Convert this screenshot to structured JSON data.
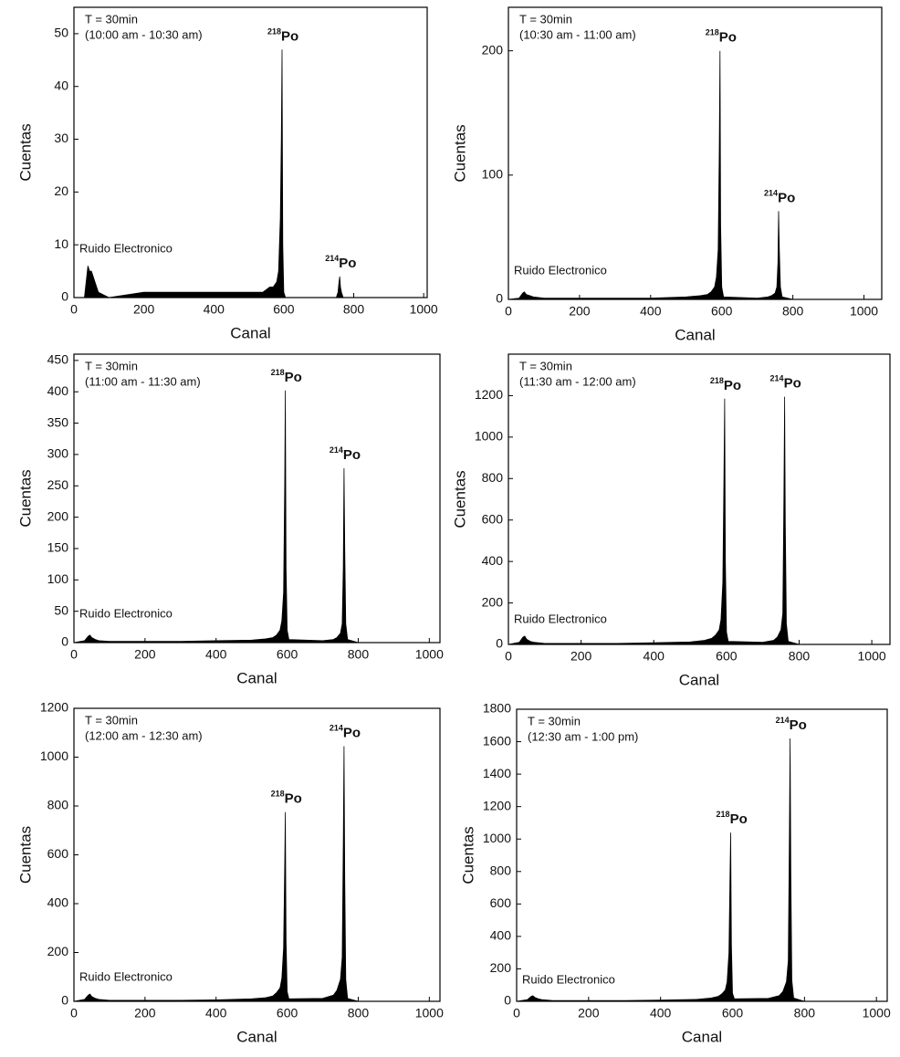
{
  "chart_data": [
    {
      "type": "area",
      "xlabel": "Canal",
      "ylabel": "Cuentas",
      "annotations": [
        "T = 30min",
        "(10:00 am - 10:30 am)"
      ],
      "noise_label": "Ruido Electronico",
      "peaks": [
        {
          "mass": "218",
          "symbol": "Po"
        },
        {
          "mass": "214",
          "symbol": "Po"
        }
      ],
      "color": "#000000",
      "x": [
        0,
        30,
        40,
        45,
        50,
        60,
        70,
        100,
        200,
        300,
        400,
        500,
        540,
        560,
        570,
        580,
        585,
        590,
        593,
        595,
        597,
        600,
        605,
        700,
        730,
        740,
        750,
        755,
        758,
        760,
        762,
        765,
        770,
        800,
        1000
      ],
      "values": [
        0,
        0,
        6,
        5,
        5,
        3,
        1,
        0,
        1,
        1,
        1,
        1,
        1,
        2,
        2,
        3,
        5,
        15,
        30,
        47,
        10,
        1,
        0,
        0,
        0,
        0,
        0,
        1,
        3,
        4,
        2,
        1,
        0,
        0,
        0
      ],
      "xlim": [
        0,
        1010
      ],
      "ylim": [
        0,
        55
      ],
      "xticks": [
        0,
        200,
        400,
        600,
        800,
        1000
      ],
      "yticks": [
        0,
        10,
        20,
        30,
        40,
        50
      ]
    },
    {
      "type": "area",
      "xlabel": "Canal",
      "ylabel": "Cuentas",
      "annotations": [
        "T = 30min",
        "(10:30 am - 11:00 am)"
      ],
      "noise_label": "Ruido Electronico",
      "peaks": [
        {
          "mass": "218",
          "symbol": "Po"
        },
        {
          "mass": "214",
          "symbol": "Po"
        }
      ],
      "color": "#000000",
      "x": [
        0,
        30,
        40,
        45,
        50,
        60,
        70,
        100,
        200,
        300,
        400,
        500,
        540,
        560,
        570,
        580,
        585,
        590,
        593,
        595,
        597,
        600,
        605,
        700,
        730,
        740,
        750,
        755,
        758,
        760,
        762,
        765,
        770,
        800,
        1000
      ],
      "values": [
        0,
        1,
        5,
        6,
        4,
        3,
        2,
        1,
        1,
        1,
        1,
        2,
        3,
        4,
        6,
        10,
        18,
        40,
        120,
        200,
        60,
        10,
        2,
        1,
        2,
        3,
        5,
        10,
        30,
        71,
        40,
        10,
        2,
        0,
        0
      ],
      "xlim": [
        0,
        1050
      ],
      "ylim": [
        0,
        235
      ],
      "xticks": [
        0,
        200,
        400,
        600,
        800,
        1000
      ],
      "yticks": [
        0,
        100,
        200
      ]
    },
    {
      "type": "area",
      "xlabel": "Canal",
      "ylabel": "Cuentas",
      "annotations": [
        "T = 30min",
        "(11:00 am - 11:30 am)"
      ],
      "noise_label": "Ruido Electronico",
      "peaks": [
        {
          "mass": "218",
          "symbol": "Po"
        },
        {
          "mass": "214",
          "symbol": "Po"
        }
      ],
      "color": "#000000",
      "x": [
        0,
        30,
        40,
        45,
        50,
        60,
        70,
        100,
        200,
        300,
        400,
        500,
        540,
        560,
        570,
        580,
        585,
        590,
        593,
        595,
        597,
        600,
        605,
        700,
        730,
        740,
        750,
        755,
        758,
        760,
        762,
        765,
        770,
        800,
        1000
      ],
      "values": [
        0,
        3,
        10,
        12,
        8,
        5,
        3,
        2,
        2,
        2,
        3,
        4,
        6,
        8,
        12,
        20,
        35,
        80,
        250,
        402,
        120,
        20,
        5,
        3,
        5,
        8,
        15,
        30,
        120,
        278,
        150,
        30,
        5,
        0,
        0
      ],
      "xlim": [
        0,
        1030
      ],
      "ylim": [
        0,
        460
      ],
      "xticks": [
        0,
        200,
        400,
        600,
        800,
        1000
      ],
      "yticks": [
        0,
        50,
        100,
        150,
        200,
        250,
        300,
        350,
        400,
        450
      ]
    },
    {
      "type": "area",
      "xlabel": "Canal",
      "ylabel": "Cuentas",
      "annotations": [
        "T = 30min",
        "(11:30 am - 12:00 am)"
      ],
      "noise_label": "Ruido Electronico",
      "peaks": [
        {
          "mass": "218",
          "symbol": "Po"
        },
        {
          "mass": "214",
          "symbol": "Po"
        }
      ],
      "color": "#000000",
      "x": [
        0,
        30,
        40,
        45,
        50,
        60,
        70,
        100,
        200,
        300,
        400,
        500,
        540,
        560,
        570,
        580,
        585,
        590,
        593,
        595,
        597,
        600,
        605,
        700,
        730,
        740,
        750,
        755,
        758,
        760,
        762,
        765,
        770,
        800,
        1000
      ],
      "values": [
        0,
        10,
        35,
        40,
        25,
        15,
        10,
        5,
        5,
        5,
        8,
        12,
        20,
        30,
        45,
        70,
        120,
        300,
        800,
        1185,
        400,
        60,
        15,
        10,
        20,
        35,
        70,
        150,
        700,
        1195,
        600,
        100,
        15,
        0,
        0
      ],
      "xlim": [
        0,
        1050
      ],
      "ylim": [
        0,
        1400
      ],
      "xticks": [
        0,
        200,
        400,
        600,
        800,
        1000
      ],
      "yticks": [
        0,
        200,
        400,
        600,
        800,
        1000,
        1200
      ]
    },
    {
      "type": "area",
      "xlabel": "Canal",
      "ylabel": "Cuentas",
      "annotations": [
        "T = 30min",
        "(12:00 am - 12:30 am)"
      ],
      "noise_label": "Ruido Electronico",
      "peaks": [
        {
          "mass": "218",
          "symbol": "Po"
        },
        {
          "mass": "214",
          "symbol": "Po"
        }
      ],
      "color": "#000000",
      "x": [
        0,
        30,
        40,
        45,
        50,
        60,
        70,
        100,
        200,
        300,
        400,
        500,
        540,
        560,
        570,
        580,
        585,
        590,
        593,
        595,
        597,
        600,
        605,
        700,
        730,
        740,
        750,
        755,
        758,
        760,
        762,
        765,
        770,
        800,
        1000
      ],
      "values": [
        0,
        8,
        25,
        30,
        20,
        12,
        8,
        4,
        4,
        4,
        6,
        10,
        15,
        22,
        35,
        55,
        95,
        220,
        550,
        775,
        250,
        40,
        10,
        12,
        25,
        45,
        90,
        180,
        650,
        1045,
        500,
        90,
        12,
        0,
        0
      ],
      "xlim": [
        0,
        1030
      ],
      "ylim": [
        0,
        1200
      ],
      "xticks": [
        0,
        200,
        400,
        600,
        800,
        1000
      ],
      "yticks": [
        0,
        200,
        400,
        600,
        800,
        1000,
        1200
      ]
    },
    {
      "type": "area",
      "xlabel": "Canal",
      "ylabel": "Cuentas",
      "annotations": [
        "T = 30min",
        "(12:30 am - 1:00 pm)"
      ],
      "noise_label": "Ruido Electronico",
      "peaks": [
        {
          "mass": "218",
          "symbol": "Po"
        },
        {
          "mass": "214",
          "symbol": "Po"
        }
      ],
      "color": "#000000",
      "x": [
        0,
        30,
        40,
        45,
        50,
        60,
        70,
        100,
        200,
        300,
        400,
        500,
        540,
        560,
        570,
        580,
        585,
        590,
        593,
        595,
        597,
        600,
        605,
        700,
        730,
        740,
        750,
        755,
        758,
        760,
        762,
        765,
        770,
        800,
        1000
      ],
      "values": [
        0,
        10,
        30,
        35,
        25,
        15,
        10,
        5,
        5,
        5,
        8,
        12,
        20,
        30,
        45,
        70,
        120,
        300,
        750,
        1040,
        350,
        50,
        15,
        18,
        35,
        60,
        120,
        250,
        1000,
        1620,
        800,
        130,
        20,
        0,
        0
      ],
      "xlim": [
        0,
        1030
      ],
      "ylim": [
        0,
        1800
      ],
      "xticks": [
        0,
        200,
        400,
        600,
        800,
        1000
      ],
      "yticks": [
        0,
        200,
        400,
        600,
        800,
        1000,
        1200,
        1400,
        1600,
        1800
      ]
    }
  ]
}
